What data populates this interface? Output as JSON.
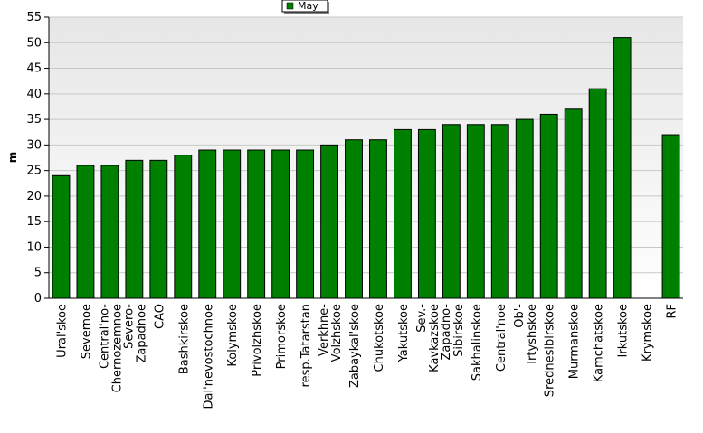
{
  "chart_data": {
    "type": "bar",
    "title": "",
    "xlabel": "",
    "ylabel": "m",
    "ylim": [
      0,
      55
    ],
    "ytick_step": 5,
    "grid": true,
    "legend_position": "top-center",
    "bar_color": "#008000",
    "categories": [
      [
        "Ural'skoe"
      ],
      [
        "Severnoe"
      ],
      [
        "Central'no-",
        "Chernozemnoe"
      ],
      [
        "Severo-",
        "Zapadnoe"
      ],
      [
        "CAO"
      ],
      [
        "Bashkirskoe"
      ],
      [
        "Dal'nevostochnoe"
      ],
      [
        "Kolymskoe"
      ],
      [
        "Privolzhskoe"
      ],
      [
        "Primorskoe"
      ],
      [
        "resp.Tatarstan"
      ],
      [
        "Verkhne-",
        "Volzhskoe"
      ],
      [
        "Zabaykal'skoe"
      ],
      [
        "Chukotskoe"
      ],
      [
        "Yakutskoe"
      ],
      [
        "Sev.-",
        "Kavkazskoe"
      ],
      [
        "Zapadno-",
        "Sibirskoe"
      ],
      [
        "Sakhalinskoe"
      ],
      [
        "Central'noe"
      ],
      [
        "Ob'-",
        "Irtyshskoe"
      ],
      [
        "Srednesibirskoe"
      ],
      [
        "Murmanskoe"
      ],
      [
        "Kamchatskoe"
      ],
      [
        "Irkutskoe"
      ],
      [
        "Krymskoe"
      ],
      [
        "RF"
      ]
    ],
    "series": [
      {
        "name": "May",
        "values": [
          24,
          26,
          26,
          27,
          27,
          28,
          29,
          29,
          29,
          29,
          29,
          30,
          31,
          31,
          33,
          33,
          34,
          34,
          34,
          35,
          36,
          37,
          41,
          51,
          null,
          32
        ]
      }
    ]
  }
}
